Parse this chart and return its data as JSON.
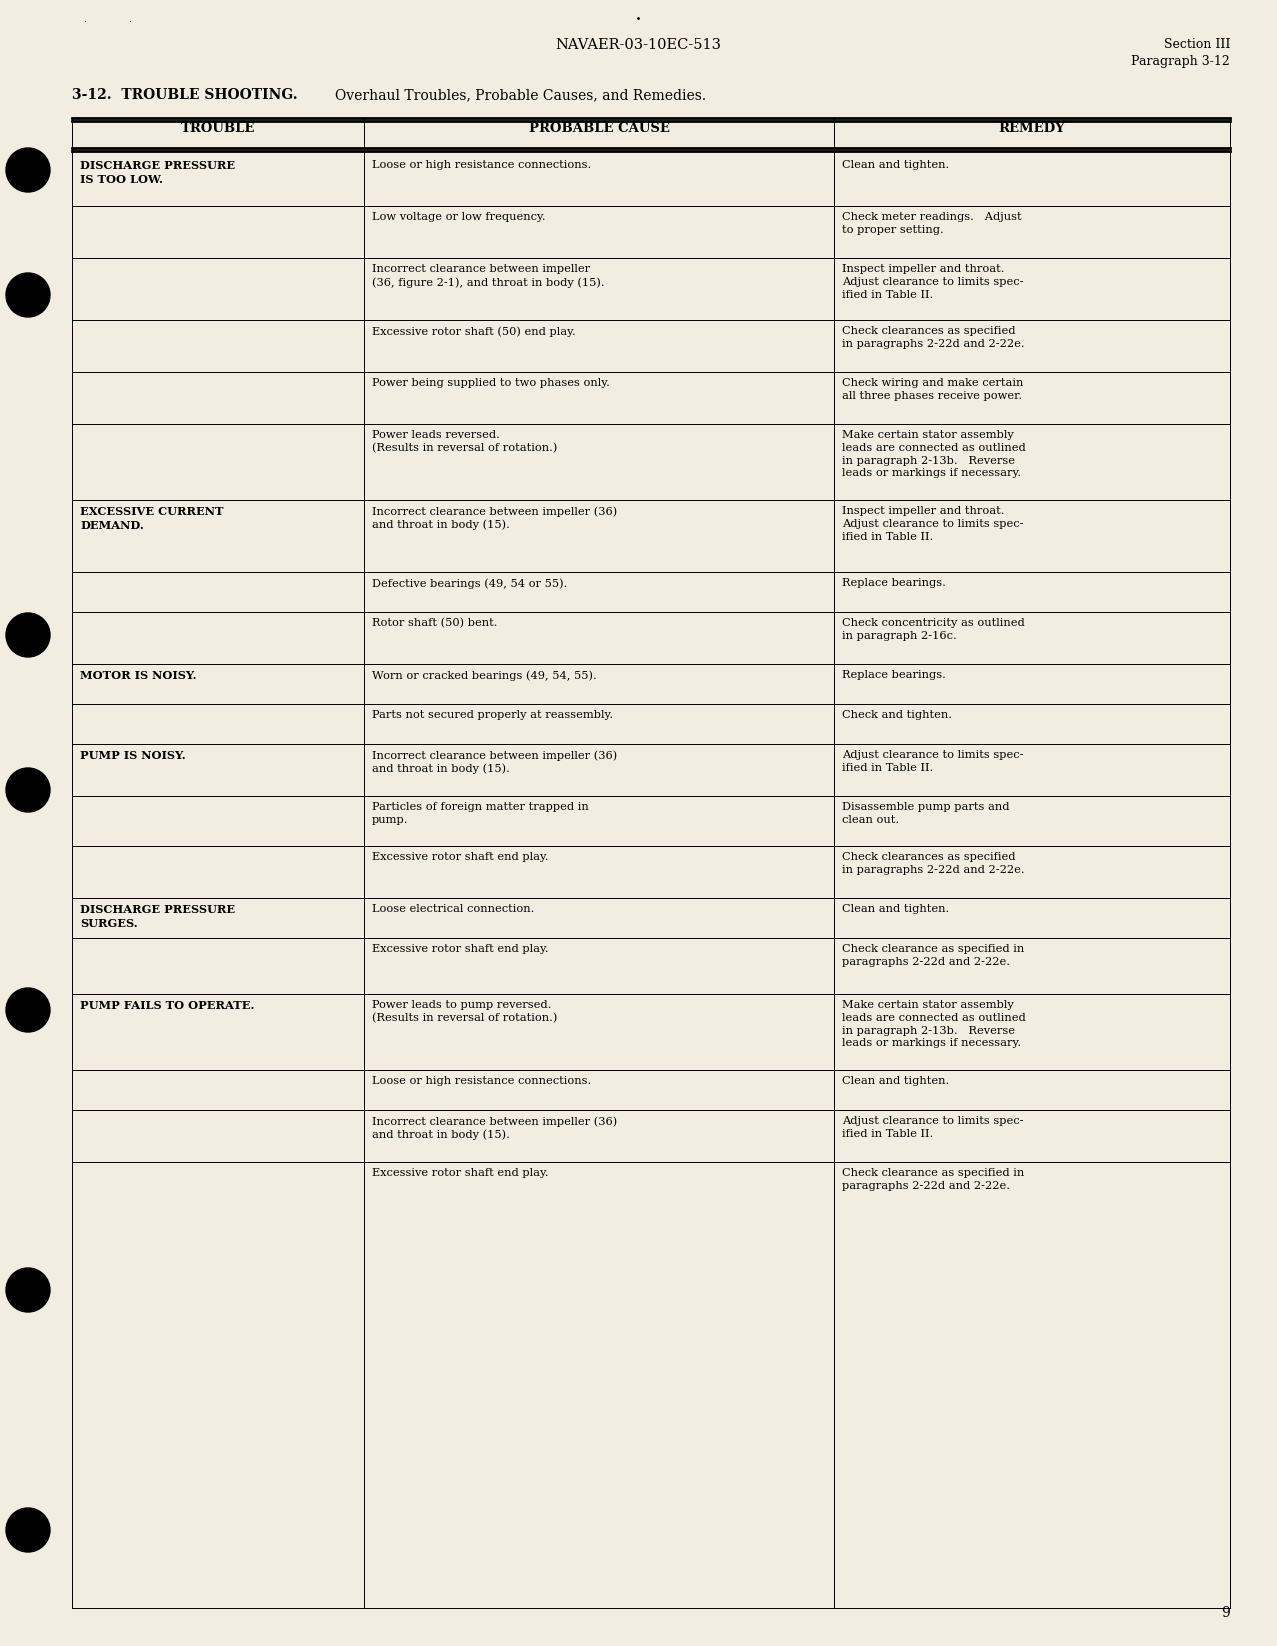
{
  "page_bg": "#f2ede0",
  "header_center": "NAVAER-03-10EC-513",
  "header_right_line1": "Section III",
  "header_right_line2": "Paragraph 3-12",
  "section_label": "3-12.  TROUBLE SHOOTING.",
  "section_desc": "Overhaul Troubles, Probable Causes, and Remedies.",
  "col_headers": [
    "TROUBLE",
    "PROBABLE CAUSE",
    "REMEDY"
  ],
  "page_number": "9",
  "rows": [
    {
      "trouble": "DISCHARGE PRESSURE\nIS TOO LOW.",
      "cause": "Loose or high resistance connections.",
      "remedy": "Clean and tighten.",
      "trouble_span": 6
    },
    {
      "trouble": "",
      "cause": "Low voltage or low frequency.",
      "remedy": "Check meter readings.   Adjust\nto proper setting.",
      "trouble_span": 0
    },
    {
      "trouble": "",
      "cause": "Incorrect clearance between impeller\n(36, figure 2-1), and throat in body (15).",
      "remedy": "Inspect impeller and throat.\nAdjust clearance to limits spec-\nified in Table II.",
      "trouble_span": 0
    },
    {
      "trouble": "",
      "cause": "Excessive rotor shaft (50) end play.",
      "remedy": "Check clearances as specified\nin paragraphs 2-22d and 2-22e.",
      "trouble_span": 0
    },
    {
      "trouble": "",
      "cause": "Power being supplied to two phases only.",
      "remedy": "Check wiring and make certain\nall three phases receive power.",
      "trouble_span": 0
    },
    {
      "trouble": "",
      "cause": "Power leads reversed.\n(Results in reversal of rotation.)",
      "remedy": "Make certain stator assembly\nleads are connected as outlined\nin paragraph 2-13b.   Reverse\nleads or markings if necessary.",
      "trouble_span": 0
    },
    {
      "trouble": "EXCESSIVE CURRENT\nDEMAND.",
      "cause": "Incorrect clearance between impeller (36)\nand throat in body (15).",
      "remedy": "Inspect impeller and throat.\nAdjust clearance to limits spec-\nified in Table II.",
      "trouble_span": 3
    },
    {
      "trouble": "",
      "cause": "Defective bearings (49, 54 or 55).",
      "remedy": "Replace bearings.",
      "trouble_span": 0
    },
    {
      "trouble": "",
      "cause": "Rotor shaft (50) bent.",
      "remedy": "Check concentricity as outlined\nin paragraph 2-16c.",
      "trouble_span": 0
    },
    {
      "trouble": "MOTOR IS NOISY.",
      "cause": "Worn or cracked bearings (49, 54, 55).",
      "remedy": "Replace bearings.",
      "trouble_span": 2
    },
    {
      "trouble": "",
      "cause": "Parts not secured properly at reassembly.",
      "remedy": "Check and tighten.",
      "trouble_span": 0
    },
    {
      "trouble": "PUMP IS NOISY.",
      "cause": "Incorrect clearance between impeller (36)\nand throat in body (15).",
      "remedy": "Adjust clearance to limits spec-\nified in Table II.",
      "trouble_span": 3
    },
    {
      "trouble": "",
      "cause": "Particles of foreign matter trapped in\npump.",
      "remedy": "Disassemble pump parts and\nclean out.",
      "trouble_span": 0
    },
    {
      "trouble": "",
      "cause": "Excessive rotor shaft end play.",
      "remedy": "Check clearances as specified\nin paragraphs 2-22d and 2-22e.",
      "trouble_span": 0
    },
    {
      "trouble": "DISCHARGE PRESSURE\nSURGES.",
      "cause": "Loose electrical connection.",
      "remedy": "Clean and tighten.",
      "trouble_span": 2
    },
    {
      "trouble": "",
      "cause": "Excessive rotor shaft end play.",
      "remedy": "Check clearance as specified in\nparagraphs 2-22d and 2-22e.",
      "trouble_span": 0
    },
    {
      "trouble": "PUMP FAILS TO OPERATE.",
      "cause": "Power leads to pump reversed.\n(Results in reversal of rotation.)",
      "remedy": "Make certain stator assembly\nleads are connected as outlined\nin paragraph 2-13b.   Reverse\nleads or markings if necessary.",
      "trouble_span": 4
    },
    {
      "trouble": "",
      "cause": "Loose or high resistance connections.",
      "remedy": "Clean and tighten.",
      "trouble_span": 0
    },
    {
      "trouble": "",
      "cause": "Incorrect clearance between impeller (36)\nand throat in body (15).",
      "remedy": "Adjust clearance to limits spec-\nified in Table II.",
      "trouble_span": 0
    },
    {
      "trouble": "",
      "cause": "Excessive rotor shaft end play.",
      "remedy": "Check clearance as specified in\nparagraphs 2-22d and 2-22e.",
      "trouble_span": 0
    }
  ]
}
